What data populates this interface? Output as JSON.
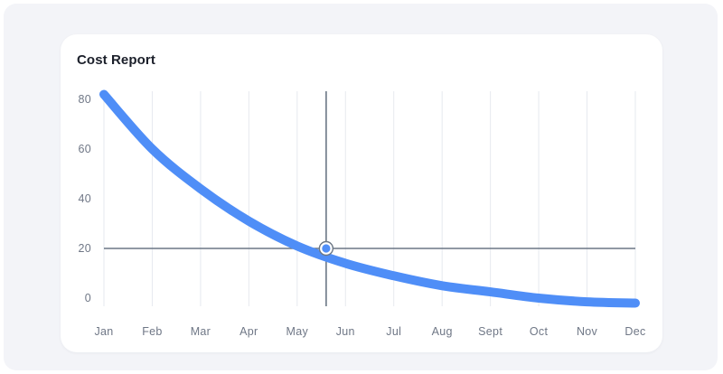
{
  "card": {
    "title": "Cost Report"
  },
  "chart_data": {
    "type": "line",
    "title": "Cost Report",
    "xlabel": "",
    "ylabel": "",
    "categories": [
      "Jan",
      "Feb",
      "Mar",
      "Apr",
      "May",
      "Jun",
      "Jul",
      "Aug",
      "Sept",
      "Oct",
      "Nov",
      "Dec"
    ],
    "y_ticks": [
      0,
      20,
      40,
      60,
      80
    ],
    "ylim": [
      0,
      80
    ],
    "series": [
      {
        "values": [
          82,
          60,
          44,
          31,
          21,
          14,
          9,
          5,
          2.5,
          0,
          -1.5,
          -2
        ]
      }
    ],
    "crosshair": {
      "x_month_position": 4.6,
      "y_value": 20
    },
    "grid": "vertical",
    "line_color": "#4f8ef7",
    "crosshair_color": "#6b7785",
    "gridline_color": "#e6e9ef",
    "axis_label_color": "#6f7786"
  }
}
